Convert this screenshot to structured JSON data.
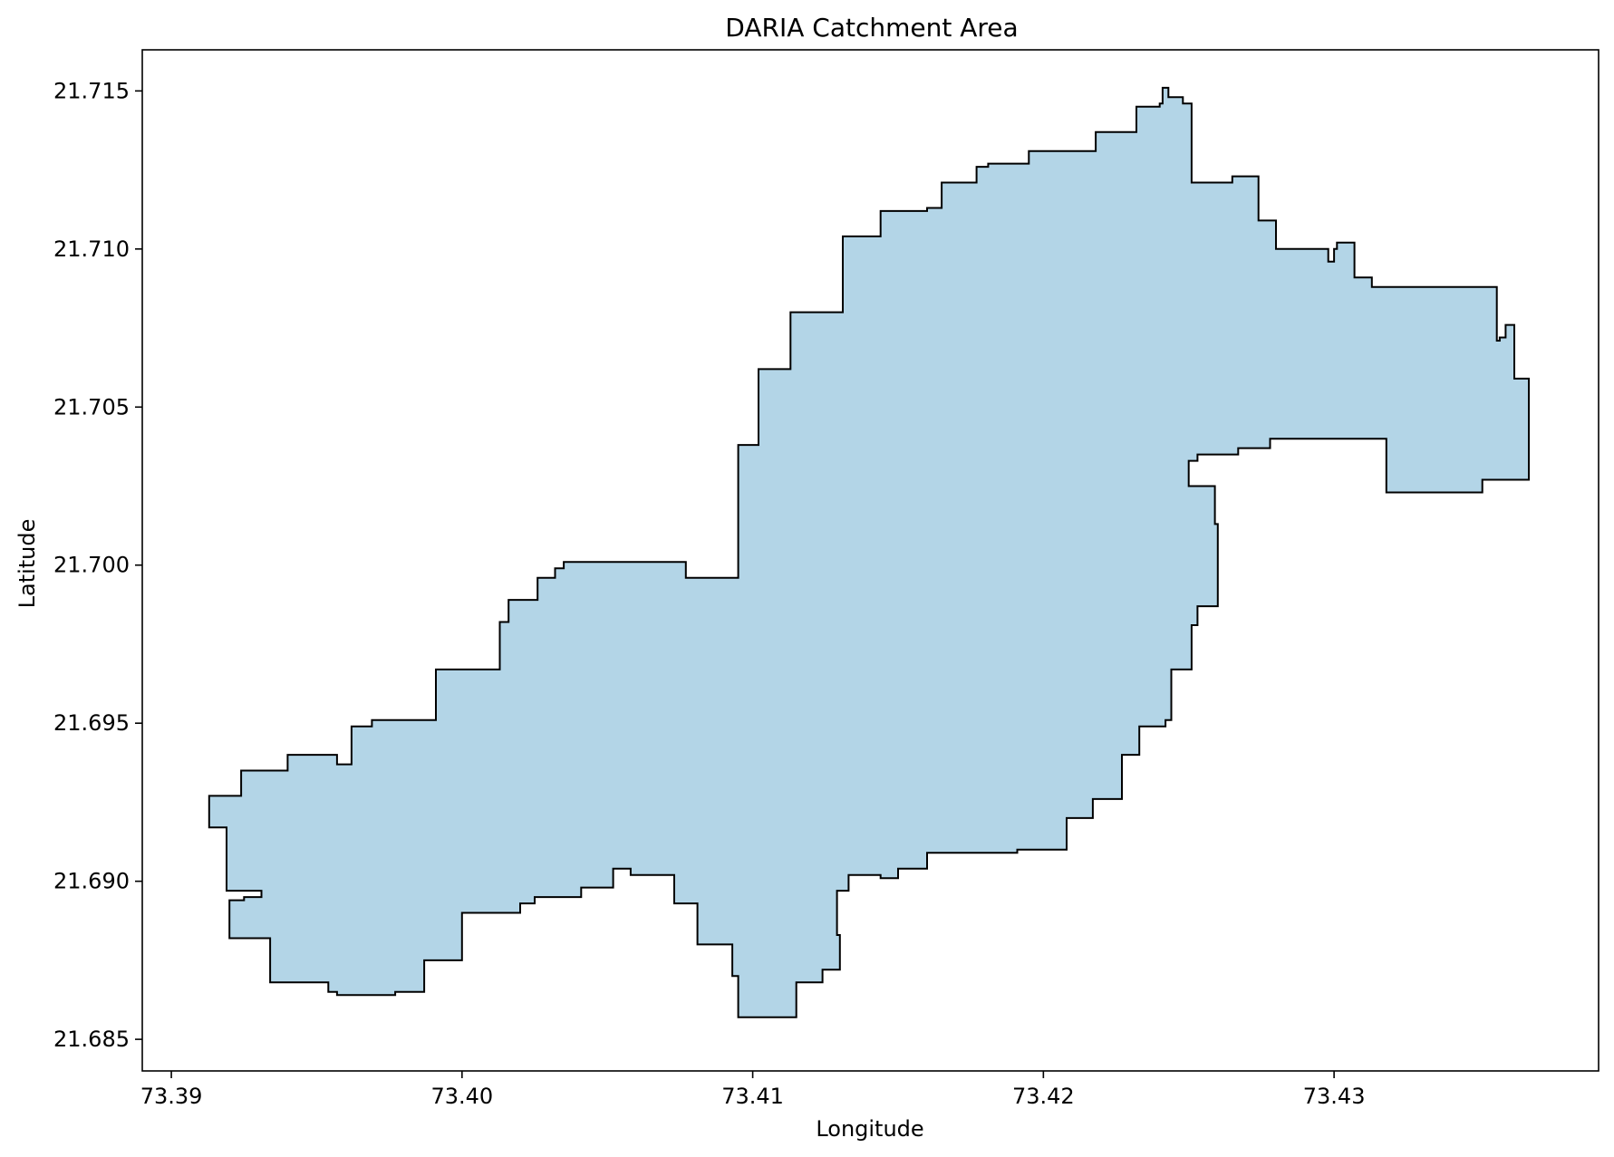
{
  "chart_data": {
    "type": "area",
    "title": "DARIA Catchment Area",
    "xlabel": "Longitude",
    "ylabel": "Latitude",
    "xlim": [
      73.389,
      73.4391
    ],
    "ylim": [
      21.684,
      21.7163
    ],
    "xticks": [
      73.39,
      73.4,
      73.41,
      73.42,
      73.43
    ],
    "xtick_labels": [
      "73.39",
      "73.40",
      "73.41",
      "73.42",
      "73.43"
    ],
    "yticks": [
      21.685,
      21.69,
      21.695,
      21.7,
      21.705,
      21.71,
      21.715
    ],
    "ytick_labels": [
      "21.685",
      "21.690",
      "21.695",
      "21.700",
      "21.705",
      "21.710",
      "21.715"
    ],
    "grid": false,
    "fill_color": "#b3d5e7",
    "edge_color": "#000000",
    "polygon": {
      "name": "",
      "lon": [
        73.3913,
        73.3924,
        73.394,
        73.3957,
        73.3962,
        73.3969,
        73.3991,
        73.4013,
        73.4016,
        73.4026,
        73.4029,
        73.4032,
        73.4035,
        73.4055,
        73.4077,
        73.4089,
        73.4095,
        73.4095,
        73.4102,
        73.4113,
        73.4131,
        73.4144,
        73.416,
        73.4165,
        73.4177,
        73.4181,
        73.4195,
        73.4218,
        73.4232,
        73.424,
        73.4241,
        73.4243,
        73.4248,
        73.4251,
        73.4265,
        73.4274,
        73.428,
        73.4298,
        73.43,
        73.4301,
        73.4307,
        73.4313,
        73.4356,
        73.4357,
        73.4359,
        73.436,
        73.4362,
        73.4362,
        73.4367,
        73.4367,
        73.4351,
        73.4321,
        73.4318,
        73.4298,
        73.4278,
        73.4267,
        73.4253,
        73.425,
        73.4259,
        73.426,
        73.4253,
        73.4251,
        73.4244,
        73.4242,
        73.4233,
        73.4227,
        73.4217,
        73.4208,
        73.4191,
        73.417,
        73.416,
        73.415,
        73.4144,
        73.4133,
        73.4129,
        73.413,
        73.4124,
        73.4115,
        73.4104,
        73.4095,
        73.4093,
        73.4081,
        73.4073,
        73.4058,
        73.4052,
        73.4041,
        73.4025,
        73.402,
        73.4,
        73.3987,
        73.3977,
        73.3957,
        73.3954,
        73.3934,
        73.3927,
        73.392,
        73.3925,
        73.3931,
        73.3919,
        73.3913
      ],
      "lat": [
        21.6927,
        21.6935,
        21.694,
        21.6937,
        21.6949,
        21.6951,
        21.6967,
        21.6982,
        21.6989,
        21.6996,
        21.6996,
        21.6999,
        21.7001,
        21.7001,
        21.6996,
        21.6996,
        21.7023,
        21.7038,
        21.7062,
        21.708,
        21.7104,
        21.7112,
        21.7113,
        21.7121,
        21.7126,
        21.7127,
        21.7131,
        21.7137,
        21.7145,
        21.7146,
        21.7151,
        21.7148,
        21.7146,
        21.7121,
        21.7123,
        21.7109,
        21.71,
        21.7096,
        21.71,
        21.7102,
        21.7091,
        21.7088,
        21.7071,
        21.7072,
        21.7076,
        21.7076,
        21.7073,
        21.7059,
        21.7032,
        21.7027,
        21.7023,
        21.7023,
        21.704,
        21.704,
        21.7037,
        21.7035,
        21.7033,
        21.7025,
        21.7013,
        21.6987,
        21.6981,
        21.6967,
        21.6951,
        21.6949,
        21.694,
        21.6926,
        21.692,
        21.691,
        21.6909,
        21.6909,
        21.6904,
        21.6901,
        21.6902,
        21.6897,
        21.6883,
        21.6872,
        21.6868,
        21.6857,
        21.6857,
        21.687,
        21.688,
        21.6893,
        21.6902,
        21.6904,
        21.6898,
        21.6895,
        21.6893,
        21.689,
        21.6875,
        21.6865,
        21.6864,
        21.6865,
        21.6868,
        21.6882,
        21.6882,
        21.6894,
        21.6895,
        21.6897,
        21.6917,
        21.6927
      ]
    }
  }
}
